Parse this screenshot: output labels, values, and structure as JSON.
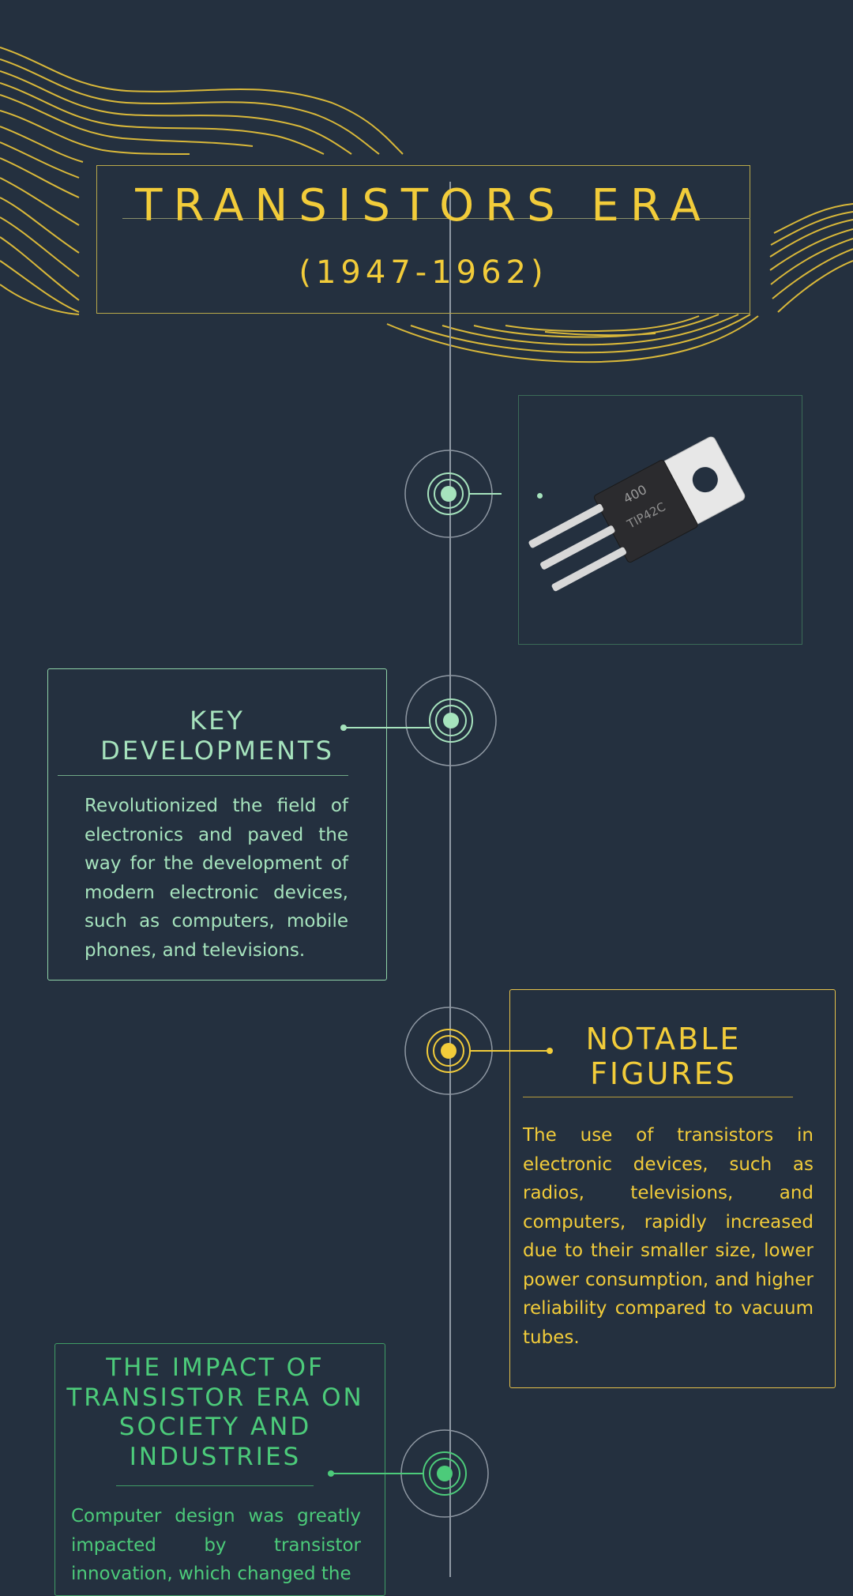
{
  "header": {
    "title": "TRANSISTORS ERA",
    "years": "(1947-1962)"
  },
  "image": {
    "subject": "transistor",
    "part_marking": "TIP42C",
    "part_code": "400"
  },
  "sections": [
    {
      "heading": "KEY DEVELOPMENTS",
      "body": "Revolutionized the field of electronics and paved the way for the development of modern electronic devices, such as computers, mobile phones, and televisions."
    },
    {
      "heading": "NOTABLE FIGURES",
      "body": "The use of transistors in electronic devices, such as radios, televisions, and computers, rapidly increased due to their smaller size, lower power consumption, and higher reliability compared to vacuum tubes."
    },
    {
      "heading": "THE IMPACT OF TRANSISTOR ERA ON SOCIETY AND INDUSTRIES",
      "body": "Computer design was greatly impacted by transistor innovation, which changed the"
    }
  ],
  "colors": {
    "background": "#24303f",
    "yellow": "#f2cc3a",
    "mint": "#a6e3bd",
    "green": "#4ccb7a",
    "timeline": "#9aa3ad"
  }
}
